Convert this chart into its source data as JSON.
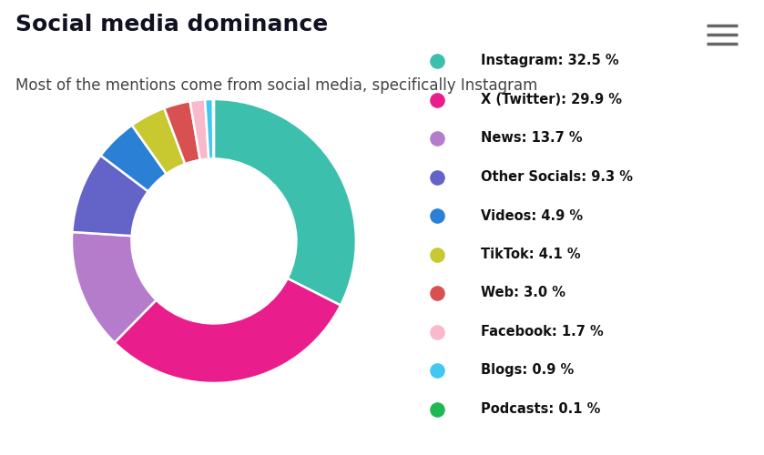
{
  "title": "Social media dominance",
  "subtitle": "Most of the mentions come from social media, specifically Instagram",
  "title_fontsize": 18,
  "subtitle_fontsize": 12,
  "background_color": "#ffffff",
  "categories": [
    "Instagram",
    "X (Twitter)",
    "News",
    "Other Socials",
    "Videos",
    "TikTok",
    "Web",
    "Facebook",
    "Blogs",
    "Podcasts"
  ],
  "values": [
    32.5,
    29.9,
    13.7,
    9.3,
    4.9,
    4.1,
    3.0,
    1.7,
    0.9,
    0.1
  ],
  "colors": [
    "#3dbfad",
    "#e91e8c",
    "#b57ccc",
    "#6464c8",
    "#2980d4",
    "#c8c830",
    "#d95050",
    "#f9b8cc",
    "#40c8f0",
    "#1db954"
  ],
  "legend_labels": [
    "Instagram: 32.5 %",
    "X (Twitter): 29.9 %",
    "News: 13.7 %",
    "Other Socials: 9.3 %",
    "Videos: 4.9 %",
    "TikTok: 4.1 %",
    "Web: 3.0 %",
    "Facebook: 1.7 %",
    "Blogs: 0.9 %",
    "Podcasts: 0.1 %"
  ],
  "donut_width": 0.42,
  "title_color": "#111122",
  "subtitle_color": "#444444",
  "legend_fontsize": 10.5,
  "hamburger_color": "#666666"
}
